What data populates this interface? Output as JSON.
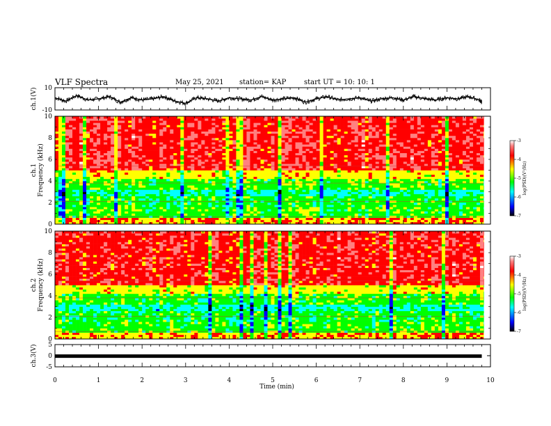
{
  "header": {
    "title": "VLF Spectra",
    "date": "May 25, 2021",
    "station": "station= KAP",
    "start": "start  UT =   10: 10: 1"
  },
  "colors": {
    "frame": "#000000",
    "trace": "#000000",
    "colormap": [
      "#000000",
      "#0000ff",
      "#00ffff",
      "#00ff00",
      "#ffff00",
      "#ff0000",
      "#ff8080",
      "#ffffff"
    ]
  },
  "chart_data": [
    {
      "type": "line",
      "id": "ch1-waveform",
      "ylabel": "ch.1(V)",
      "ylim": [
        -10,
        10
      ],
      "yticks": [
        "10",
        "-10"
      ],
      "xlim": [
        0,
        10
      ],
      "x": [
        0.0,
        0.25,
        0.5,
        0.75,
        1.0,
        1.25,
        1.5,
        1.75,
        2.0,
        2.25,
        2.5,
        2.75,
        3.0,
        3.25,
        3.5,
        3.75,
        4.0,
        4.25,
        4.5,
        4.75,
        5.0,
        5.25,
        5.5,
        5.75,
        6.0,
        6.25,
        6.5,
        6.75,
        7.0,
        7.25,
        7.5,
        7.75,
        8.0,
        8.25,
        8.5,
        8.75,
        9.0,
        9.25,
        9.5,
        9.75,
        9.8
      ],
      "values": [
        1,
        -2,
        3,
        -1,
        0,
        2,
        -3,
        1,
        -1,
        0,
        2,
        -2,
        -4,
        1,
        0,
        -2,
        1,
        0,
        -1,
        2,
        -1,
        0,
        1,
        -3,
        0,
        2,
        -1,
        0,
        1,
        -2,
        0,
        1,
        -1,
        2,
        0,
        -1,
        1,
        0,
        2,
        -1,
        -3
      ]
    },
    {
      "type": "heatmap",
      "id": "ch1-spectrogram",
      "ylabel": "ch.1\nFrequency (kHz)",
      "ylim": [
        0,
        10
      ],
      "yticks": [
        "0",
        "2",
        "4",
        "6",
        "8",
        "10"
      ],
      "xlim": [
        0,
        10
      ],
      "colorbar": {
        "label": "log(PSD)(V²/Hz)",
        "range": [
          -7,
          -3
        ],
        "ticks": [
          "-3",
          "-4",
          "-5",
          "-6",
          "-7"
        ]
      }
    },
    {
      "type": "heatmap",
      "id": "ch2-spectrogram",
      "ylabel": "ch.2\nFrequency (kHz)",
      "ylim": [
        0,
        10
      ],
      "yticks": [
        "0",
        "2",
        "4",
        "6",
        "8",
        "10"
      ],
      "xlim": [
        0,
        10
      ],
      "colorbar": {
        "label": "log(PSD)(V²/Hz)",
        "range": [
          -7,
          -3
        ],
        "ticks": [
          "-3",
          "-4",
          "-5",
          "-6",
          "-7"
        ]
      }
    },
    {
      "type": "line",
      "id": "ch3-waveform",
      "ylabel": "ch.3(V)",
      "ylim": [
        -5,
        5
      ],
      "yticks": [
        "5",
        "0",
        "-5"
      ],
      "xlim": [
        0,
        10
      ],
      "x": [
        0,
        9.8
      ],
      "values": [
        -0.2,
        -0.2
      ]
    }
  ],
  "xaxis": {
    "label": "Time (min)",
    "ticks": [
      "0",
      "1",
      "2",
      "3",
      "4",
      "5",
      "6",
      "7",
      "8",
      "9",
      "10"
    ]
  }
}
